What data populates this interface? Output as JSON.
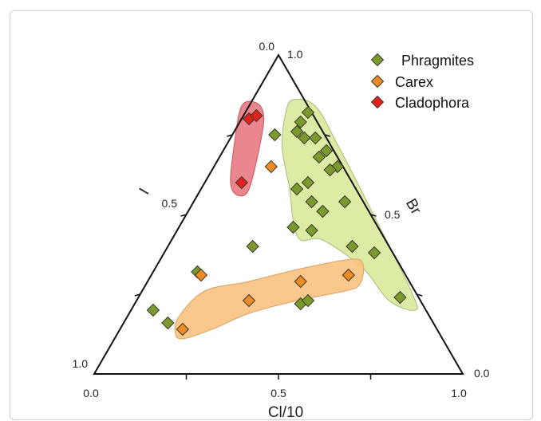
{
  "chart_data": {
    "type": "scatter",
    "subtype": "ternary",
    "title": "",
    "components": {
      "x": "Cl/10",
      "left": "I",
      "right": "Br"
    },
    "axis_labels": {
      "bottom": "Cl/10",
      "left": "I",
      "right": "Br"
    },
    "tick_labels": {
      "bottom": [
        "0.0",
        "0.5",
        "1.0"
      ],
      "left": [
        "0.0",
        "0.5",
        "1.0"
      ],
      "right": [
        "1.0",
        "0.5",
        "0.0"
      ]
    },
    "legend": {
      "placement": "top-right",
      "entries": [
        "Phragmites",
        "Carex",
        "Cladophora"
      ]
    },
    "colors": {
      "Phragmites": "#7b9a2e",
      "Carex": "#f08a24",
      "Cladophora": "#e3201b",
      "Phragmites_region": "#d9ea9a",
      "Carex_region": "#f9c27f",
      "Cladophora_region": "#e8707a"
    },
    "series": [
      {
        "name": "Phragmites",
        "points": [
          {
            "cl": 0.58,
            "br": 0.82
          },
          {
            "cl": 0.56,
            "br": 0.79
          },
          {
            "cl": 0.55,
            "br": 0.76
          },
          {
            "cl": 0.57,
            "br": 0.74
          },
          {
            "cl": 0.6,
            "br": 0.74
          },
          {
            "cl": 0.63,
            "br": 0.7
          },
          {
            "cl": 0.61,
            "br": 0.68
          },
          {
            "cl": 0.66,
            "br": 0.65
          },
          {
            "cl": 0.64,
            "br": 0.64
          },
          {
            "cl": 0.58,
            "br": 0.6
          },
          {
            "cl": 0.55,
            "br": 0.58
          },
          {
            "cl": 0.59,
            "br": 0.54
          },
          {
            "cl": 0.68,
            "br": 0.54
          },
          {
            "cl": 0.62,
            "br": 0.51
          },
          {
            "cl": 0.54,
            "br": 0.46
          },
          {
            "cl": 0.59,
            "br": 0.45
          },
          {
            "cl": 0.7,
            "br": 0.4
          },
          {
            "cl": 0.76,
            "br": 0.38
          },
          {
            "cl": 0.83,
            "br": 0.24
          },
          {
            "cl": 0.49,
            "br": 0.75
          },
          {
            "cl": 0.43,
            "br": 0.4
          },
          {
            "cl": 0.28,
            "br": 0.32
          },
          {
            "cl": 0.56,
            "br": 0.22
          },
          {
            "cl": 0.58,
            "br": 0.23
          },
          {
            "cl": 0.16,
            "br": 0.2
          },
          {
            "cl": 0.2,
            "br": 0.16
          }
        ]
      },
      {
        "name": "Carex",
        "points": [
          {
            "cl": 0.48,
            "br": 0.65
          },
          {
            "cl": 0.29,
            "br": 0.31
          },
          {
            "cl": 0.56,
            "br": 0.29
          },
          {
            "cl": 0.69,
            "br": 0.31
          },
          {
            "cl": 0.42,
            "br": 0.23
          },
          {
            "cl": 0.24,
            "br": 0.14
          }
        ]
      },
      {
        "name": "Cladophora",
        "points": [
          {
            "cl": 0.42,
            "br": 0.8
          },
          {
            "cl": 0.44,
            "br": 0.81
          },
          {
            "cl": 0.4,
            "br": 0.6
          }
        ]
      }
    ],
    "regions": [
      {
        "series": "Phragmites",
        "outline": [
          {
            "cl": 0.54,
            "br": 0.86
          },
          {
            "cl": 0.6,
            "br": 0.84
          },
          {
            "cl": 0.66,
            "br": 0.72
          },
          {
            "cl": 0.74,
            "br": 0.54
          },
          {
            "cl": 0.86,
            "br": 0.26
          },
          {
            "cl": 0.87,
            "br": 0.2
          },
          {
            "cl": 0.8,
            "br": 0.23
          },
          {
            "cl": 0.73,
            "br": 0.33
          },
          {
            "cl": 0.62,
            "br": 0.42
          },
          {
            "cl": 0.56,
            "br": 0.42
          },
          {
            "cl": 0.54,
            "br": 0.48
          },
          {
            "cl": 0.53,
            "br": 0.58
          },
          {
            "cl": 0.51,
            "br": 0.71
          },
          {
            "cl": 0.52,
            "br": 0.82
          }
        ]
      },
      {
        "series": "Carex",
        "outline": [
          {
            "cl": 0.24,
            "br": 0.11
          },
          {
            "cl": 0.22,
            "br": 0.13
          },
          {
            "cl": 0.23,
            "br": 0.18
          },
          {
            "cl": 0.3,
            "br": 0.26
          },
          {
            "cl": 0.42,
            "br": 0.29
          },
          {
            "cl": 0.56,
            "br": 0.33
          },
          {
            "cl": 0.7,
            "br": 0.36
          },
          {
            "cl": 0.73,
            "br": 0.34
          },
          {
            "cl": 0.72,
            "br": 0.28
          },
          {
            "cl": 0.68,
            "br": 0.26
          },
          {
            "cl": 0.55,
            "br": 0.23
          },
          {
            "cl": 0.42,
            "br": 0.19
          },
          {
            "cl": 0.32,
            "br": 0.14
          }
        ]
      },
      {
        "series": "Cladophora",
        "outline": [
          {
            "cl": 0.4,
            "br": 0.84
          },
          {
            "cl": 0.44,
            "br": 0.85
          },
          {
            "cl": 0.46,
            "br": 0.81
          },
          {
            "cl": 0.45,
            "br": 0.72
          },
          {
            "cl": 0.42,
            "br": 0.58
          },
          {
            "cl": 0.39,
            "br": 0.56
          },
          {
            "cl": 0.37,
            "br": 0.6
          },
          {
            "cl": 0.38,
            "br": 0.72
          }
        ]
      }
    ]
  }
}
